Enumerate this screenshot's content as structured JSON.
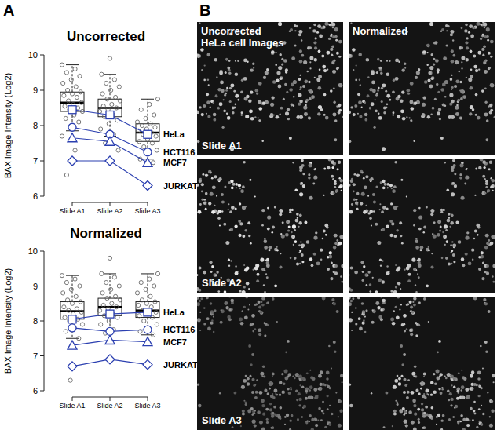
{
  "panel_labels": [
    "A",
    "B"
  ],
  "chart_data": [
    {
      "type": "box",
      "title": "Uncorrected",
      "y_label": "BAX Image Intensity (Log2)",
      "categories": [
        "Slide A1",
        "Slide A2",
        "Slide A3"
      ],
      "ylim": [
        6,
        10
      ],
      "yticks": [
        6,
        7,
        8,
        9,
        10
      ],
      "boxes": [
        {
          "min": 7.85,
          "q1": 8.4,
          "median": 8.65,
          "q3": 8.95,
          "max": 9.72
        },
        {
          "min": 7.7,
          "q1": 8.25,
          "median": 8.5,
          "q3": 8.75,
          "max": 9.45
        },
        {
          "min": 7.05,
          "q1": 7.55,
          "median": 7.8,
          "q3": 8.05,
          "max": 8.75
        }
      ],
      "points": [
        [
          9.72,
          9.6,
          9.5,
          9.4,
          9.3,
          9.2,
          9.1,
          9.0,
          8.95,
          8.9,
          8.85,
          8.8,
          8.7,
          8.65,
          8.6,
          8.55,
          8.5,
          8.45,
          8.4,
          8.3,
          8.2,
          8.1,
          7.95,
          7.7,
          7.3,
          6.6
        ],
        [
          9.9,
          9.45,
          9.3,
          9.2,
          9.1,
          9.0,
          8.9,
          8.8,
          8.75,
          8.7,
          8.6,
          8.55,
          8.5,
          8.45,
          8.4,
          8.3,
          8.25,
          8.15,
          8.05,
          7.9,
          7.75,
          7.5,
          7.3
        ],
        [
          8.75,
          8.6,
          8.45,
          8.3,
          8.2,
          8.1,
          8.05,
          8.0,
          7.95,
          7.9,
          7.85,
          7.8,
          7.75,
          7.7,
          7.6,
          7.55,
          7.5,
          7.4,
          7.3,
          7.2,
          7.05,
          6.95
        ]
      ],
      "series": [
        {
          "name": "HeLa",
          "type": "line",
          "marker": "square",
          "color": "#2b3fb0",
          "values": [
            8.45,
            8.3,
            7.75
          ]
        },
        {
          "name": "HCT116",
          "type": "line",
          "marker": "circle",
          "color": "#2b3fb0",
          "values": [
            7.95,
            7.75,
            7.25
          ]
        },
        {
          "name": "MCF7",
          "type": "line",
          "marker": "triangle",
          "color": "#2b3fb0",
          "values": [
            7.65,
            7.55,
            6.95
          ]
        },
        {
          "name": "JURKAT",
          "type": "line",
          "marker": "diamond",
          "color": "#2b3fb0",
          "values": [
            7.0,
            7.0,
            6.3
          ]
        }
      ]
    },
    {
      "type": "box",
      "title": "Normalized",
      "y_label": "BAX Image Intensity (Log2)",
      "categories": [
        "Slide A1",
        "Slide A2",
        "Slide A3"
      ],
      "ylim": [
        6,
        10
      ],
      "yticks": [
        6,
        7,
        8,
        9,
        10
      ],
      "boxes": [
        {
          "min": 7.5,
          "q1": 8.05,
          "median": 8.28,
          "q3": 8.55,
          "max": 9.3
        },
        {
          "min": 7.65,
          "q1": 8.15,
          "median": 8.4,
          "q3": 8.65,
          "max": 9.35
        },
        {
          "min": 7.6,
          "q1": 8.1,
          "median": 8.3,
          "q3": 8.55,
          "max": 9.35
        }
      ],
      "points": [
        [
          9.3,
          9.2,
          9.1,
          9.0,
          8.9,
          8.8,
          8.7,
          8.6,
          8.55,
          8.5,
          8.4,
          8.35,
          8.3,
          8.25,
          8.2,
          8.1,
          8.05,
          8.0,
          7.9,
          7.8,
          7.7,
          7.5,
          6.3
        ],
        [
          9.8,
          9.35,
          9.25,
          9.1,
          9.0,
          8.9,
          8.8,
          8.7,
          8.65,
          8.6,
          8.5,
          8.45,
          8.4,
          8.35,
          8.3,
          8.2,
          8.15,
          8.1,
          8.0,
          7.9,
          7.75,
          7.65
        ],
        [
          9.35,
          9.2,
          9.1,
          9.0,
          8.9,
          8.8,
          8.7,
          8.6,
          8.55,
          8.5,
          8.45,
          8.4,
          8.3,
          8.25,
          8.2,
          8.15,
          8.1,
          8.0,
          7.9,
          7.8,
          7.7,
          7.6
        ]
      ],
      "series": [
        {
          "name": "HeLa",
          "type": "line",
          "marker": "square",
          "color": "#2b3fb0",
          "values": [
            8.05,
            8.2,
            8.25
          ]
        },
        {
          "name": "HCT116",
          "type": "line",
          "marker": "circle",
          "color": "#2b3fb0",
          "values": [
            7.8,
            7.7,
            7.75
          ]
        },
        {
          "name": "MCF7",
          "type": "line",
          "marker": "triangle",
          "color": "#2b3fb0",
          "values": [
            7.3,
            7.45,
            7.4
          ]
        },
        {
          "name": "JURKAT",
          "type": "line",
          "marker": "diamond",
          "color": "#2b3fb0",
          "values": [
            6.7,
            6.9,
            6.75
          ]
        }
      ]
    }
  ],
  "images": {
    "column_titles": [
      [
        "Uncorrected",
        "HeLa cell Images"
      ],
      [
        "Normalized"
      ]
    ],
    "row_labels": [
      "Slide A1",
      "Slide A2",
      "Slide A3"
    ]
  }
}
